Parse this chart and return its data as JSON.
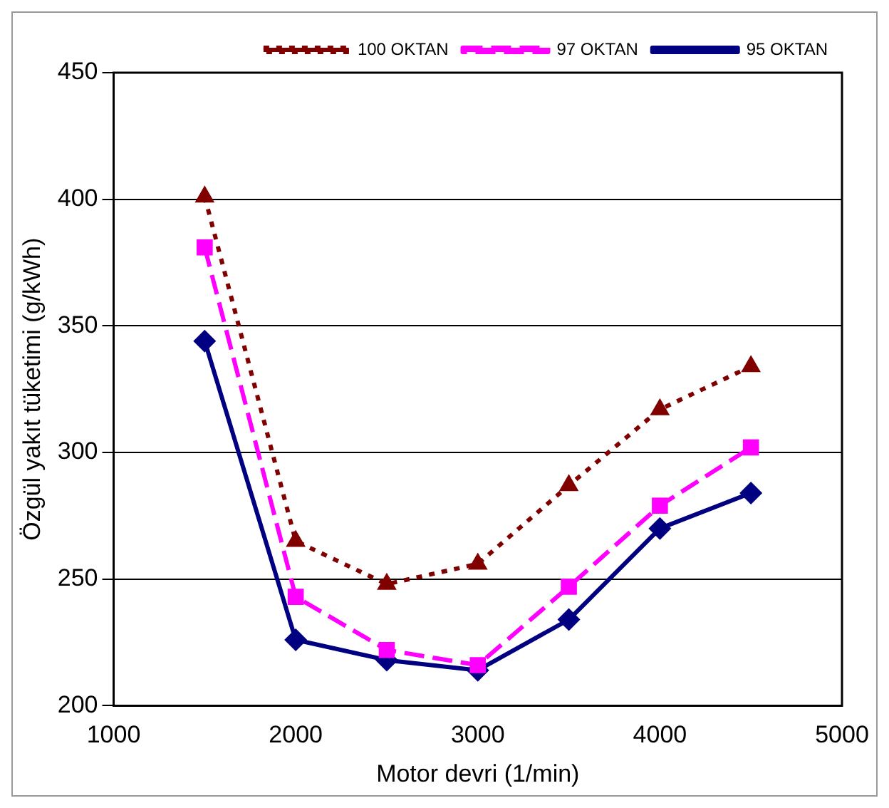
{
  "chart_data": {
    "type": "line",
    "xlabel": "Motor devri (1/min)",
    "ylabel": "Özgül yakıt tüketimi (g/kWh)",
    "x": [
      1500,
      2000,
      2500,
      3000,
      3500,
      4000,
      4500
    ],
    "xlim": [
      1000,
      5000
    ],
    "xticks": [
      1000,
      2000,
      3000,
      4000,
      5000
    ],
    "ylim": [
      200,
      450
    ],
    "yticks": [
      200,
      250,
      300,
      350,
      400,
      450
    ],
    "grid": "y",
    "legend": "top right",
    "series": [
      {
        "name": "95 OKTAN",
        "color": "#000080",
        "marker": "diamond",
        "line_style": "solid",
        "values": [
          344,
          226,
          218,
          214,
          234,
          270,
          284
        ]
      },
      {
        "name": "97 OKTAN",
        "color": "#ff00ff",
        "marker": "square",
        "line_style": "dashed",
        "values": [
          381,
          243,
          222,
          216,
          247,
          279,
          302
        ]
      },
      {
        "name": "100 OKTAN",
        "color": "#800000",
        "marker": "triangle",
        "line_style": "dotted",
        "values": [
          401,
          265,
          248,
          256,
          287,
          317,
          334
        ]
      }
    ]
  }
}
